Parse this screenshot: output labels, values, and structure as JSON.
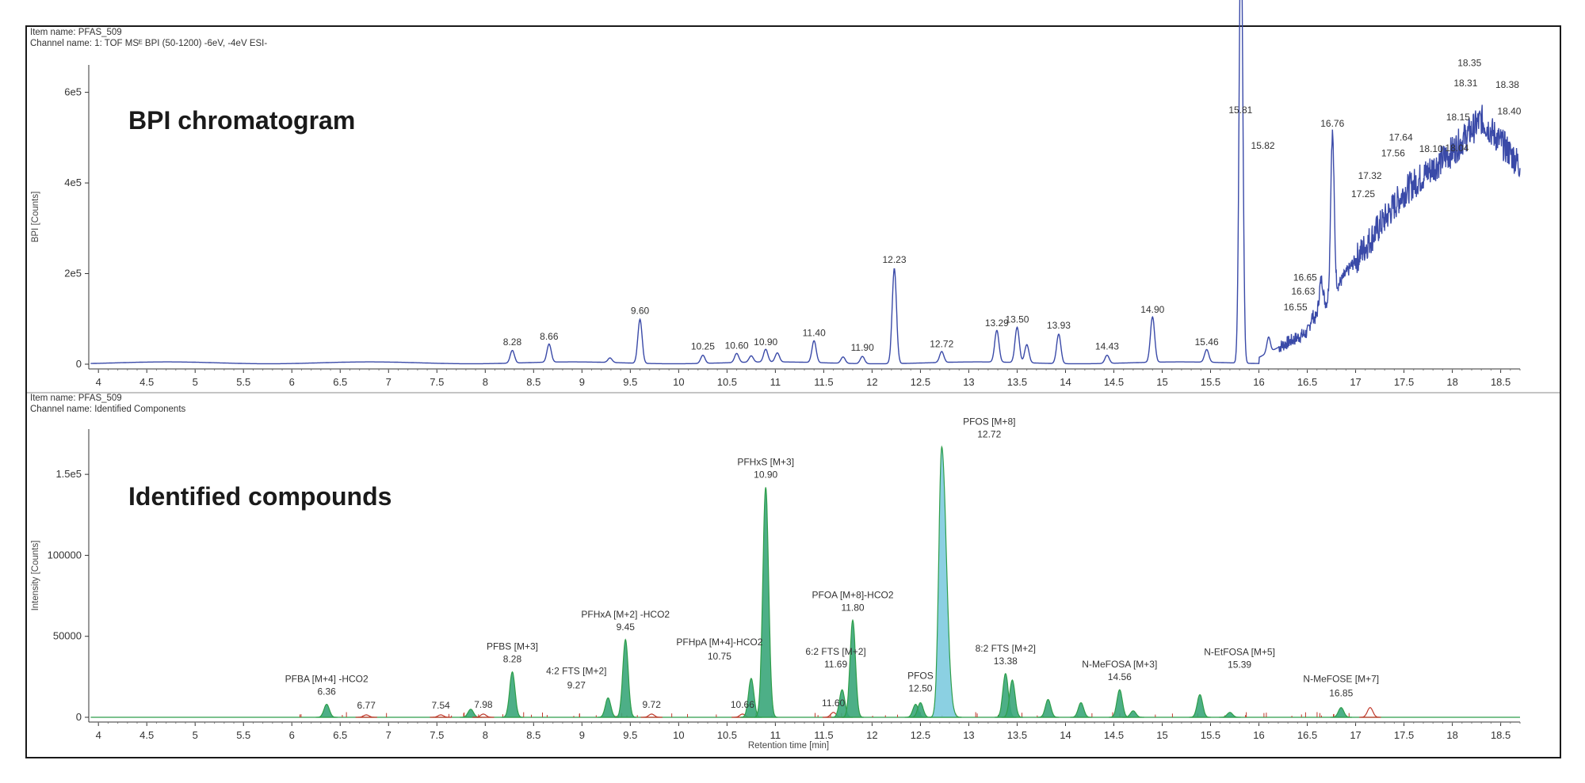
{
  "chart_data": [
    {
      "type": "line",
      "panel_title": "BPI chromatogram",
      "item_name": "Item name: PFAS_509",
      "channel_name": "Channel name: 1: TOF MSᴱ BPI (50-1200) -6eV, -4eV ESI-",
      "ylabel": "BPI [Counts]",
      "xlabel": "",
      "xlim": [
        3.9,
        18.7
      ],
      "ylim": [
        0,
        650000
      ],
      "y_ticks": [
        {
          "v": 0,
          "label": "0"
        },
        {
          "v": 200000,
          "label": "2e5"
        },
        {
          "v": 400000,
          "label": "4e5"
        },
        {
          "v": 600000,
          "label": "6e5"
        }
      ],
      "x_ticks": [
        4,
        4.5,
        5,
        5.5,
        6,
        6.5,
        7,
        7.5,
        8,
        8.5,
        9,
        9.5,
        10,
        10.5,
        11,
        11.5,
        12,
        12.5,
        13,
        13.5,
        14,
        14.5,
        15,
        15.5,
        16,
        16.5,
        17,
        17.5,
        18,
        18.5
      ],
      "x_tick_labels": [
        "4",
        "4.5",
        "5",
        "5.5",
        "6",
        "6.5",
        "7",
        "7.5",
        "8",
        "8.5",
        "9",
        "9.5",
        "10",
        "10.5",
        "11",
        "11.5",
        "12",
        "12.5",
        "13",
        "13.5",
        "14",
        "14.5",
        "15",
        "15.5",
        "16",
        "16.5",
        "17",
        "17.5",
        "18",
        "18.5"
      ],
      "color": "#3a4aa8",
      "peaks": [
        {
          "rt": 8.28,
          "height": 28000,
          "label": "8.28"
        },
        {
          "rt": 8.66,
          "height": 40000,
          "label": "8.66"
        },
        {
          "rt": 9.29,
          "height": 10000,
          "label": ""
        },
        {
          "rt": 9.6,
          "height": 97000,
          "label": "9.60"
        },
        {
          "rt": 10.25,
          "height": 18000,
          "label": "10.25"
        },
        {
          "rt": 10.6,
          "height": 20000,
          "label": "10.60"
        },
        {
          "rt": 10.75,
          "height": 14000,
          "label": ""
        },
        {
          "rt": 10.9,
          "height": 28000,
          "label": "10.90"
        },
        {
          "rt": 11.02,
          "height": 20000,
          "label": ""
        },
        {
          "rt": 11.4,
          "height": 48000,
          "label": "11.40"
        },
        {
          "rt": 11.7,
          "height": 14000,
          "label": ""
        },
        {
          "rt": 11.9,
          "height": 16000,
          "label": "11.90"
        },
        {
          "rt": 12.23,
          "height": 210000,
          "label": "12.23"
        },
        {
          "rt": 12.72,
          "height": 24000,
          "label": "12.72"
        },
        {
          "rt": 13.29,
          "height": 70000,
          "label": "13.29"
        },
        {
          "rt": 13.5,
          "height": 78000,
          "label": "13.50"
        },
        {
          "rt": 13.6,
          "height": 40000,
          "label": ""
        },
        {
          "rt": 13.93,
          "height": 65000,
          "label": "13.93"
        },
        {
          "rt": 14.43,
          "height": 18000,
          "label": "14.43"
        },
        {
          "rt": 14.9,
          "height": 100000,
          "label": "14.90"
        },
        {
          "rt": 15.46,
          "height": 28000,
          "label": "15.46"
        },
        {
          "rt": 15.81,
          "height": 540000,
          "label": "15.81"
        },
        {
          "rt": 15.82,
          "height": 500000,
          "label": "15.82"
        },
        {
          "rt": 16.1,
          "height": 60000,
          "label": ""
        },
        {
          "rt": 16.55,
          "height": 105000,
          "label": "16.55"
        },
        {
          "rt": 16.63,
          "height": 140000,
          "label": "16.63"
        },
        {
          "rt": 16.65,
          "height": 170000,
          "label": "16.65"
        },
        {
          "rt": 16.76,
          "height": 510000,
          "label": "16.76"
        },
        {
          "rt": 17.25,
          "height": 355000,
          "label": "17.25"
        },
        {
          "rt": 17.32,
          "height": 395000,
          "label": "17.32"
        },
        {
          "rt": 17.56,
          "height": 445000,
          "label": "17.56"
        },
        {
          "rt": 17.64,
          "height": 480000,
          "label": "17.64"
        },
        {
          "rt": 18.1,
          "height": 510000,
          "label": "18.10"
        },
        {
          "rt": 18.04,
          "height": 505000,
          "label": "18.04"
        },
        {
          "rt": 18.15,
          "height": 545000,
          "label": "18.15"
        },
        {
          "rt": 18.31,
          "height": 620000,
          "label": "18.31"
        },
        {
          "rt": 18.35,
          "height": 640000,
          "label": "18.35"
        },
        {
          "rt": 18.38,
          "height": 620000,
          "label": "18.38"
        },
        {
          "rt": 18.4,
          "height": 590000,
          "label": "18.40"
        }
      ],
      "baseline_rise": [
        {
          "rt": 16.0,
          "v": 15000
        },
        {
          "rt": 16.5,
          "v": 70000
        },
        {
          "rt": 16.9,
          "v": 200000
        },
        {
          "rt": 17.5,
          "v": 380000
        },
        {
          "rt": 18.0,
          "v": 470000
        },
        {
          "rt": 18.3,
          "v": 540000
        },
        {
          "rt": 18.7,
          "v": 440000
        }
      ]
    },
    {
      "type": "area",
      "panel_title": "Identified compounds",
      "item_name": "Item name: PFAS_509",
      "channel_name": "Channel name: Identified Components",
      "ylabel": "Intensity [Counts]",
      "xlabel": "Retention time [min]",
      "xlim": [
        3.9,
        18.7
      ],
      "ylim": [
        0,
        175000
      ],
      "y_ticks": [
        {
          "v": 0,
          "label": "0"
        },
        {
          "v": 50000,
          "label": "50000"
        },
        {
          "v": 100000,
          "label": "100000"
        },
        {
          "v": 150000,
          "label": "1.5e5"
        }
      ],
      "x_ticks": [
        4,
        4.5,
        5,
        5.5,
        6,
        6.5,
        7,
        7.5,
        8,
        8.5,
        9,
        9.5,
        10,
        10.5,
        11,
        11.5,
        12,
        12.5,
        13,
        13.5,
        14,
        14.5,
        15,
        15.5,
        16,
        16.5,
        17,
        17.5,
        18,
        18.5
      ],
      "x_tick_labels": [
        "4",
        "4.5",
        "5",
        "5.5",
        "6",
        "6.5",
        "7",
        "7.5",
        "8",
        "8.5",
        "9",
        "9.5",
        "10",
        "10.5",
        "11",
        "11.5",
        "12",
        "12.5",
        "13",
        "13.5",
        "14",
        "14.5",
        "15",
        "15.5",
        "16",
        "16.5",
        "17",
        "17.5",
        "18",
        "18.5"
      ],
      "line_color": "#2e9e4a",
      "fill_green": "#3aa67a",
      "fill_blue": "#7ecbdf",
      "minor_color": "#c0392b",
      "peaks": [
        {
          "rt": 6.36,
          "height": 8000,
          "name": "PFBA [M+4] -HCO2",
          "label": "6.36",
          "fill": "green"
        },
        {
          "rt": 6.77,
          "height": 1500,
          "name": "",
          "label": "6.77",
          "fill": "none"
        },
        {
          "rt": 7.54,
          "height": 1500,
          "name": "",
          "label": "7.54",
          "fill": "none"
        },
        {
          "rt": 7.85,
          "height": 5000,
          "name": "",
          "label": "",
          "fill": "green"
        },
        {
          "rt": 7.98,
          "height": 2000,
          "name": "",
          "label": "7.98",
          "fill": "none"
        },
        {
          "rt": 8.28,
          "height": 28000,
          "name": "PFBS [M+3]",
          "label": "8.28",
          "fill": "green"
        },
        {
          "rt": 9.27,
          "height": 12000,
          "name": "4:2 FTS [M+2]",
          "label": "9.27",
          "fill": "green"
        },
        {
          "rt": 9.45,
          "height": 48000,
          "name": "PFHxA [M+2] -HCO2",
          "label": "9.45",
          "fill": "green"
        },
        {
          "rt": 9.72,
          "height": 2000,
          "name": "",
          "label": "9.72",
          "fill": "none"
        },
        {
          "rt": 10.66,
          "height": 2000,
          "name": "",
          "label": "10.66",
          "fill": "none"
        },
        {
          "rt": 10.75,
          "height": 24000,
          "name": "PFHpA [M+4]-HCO2",
          "label": "10.75",
          "fill": "green"
        },
        {
          "rt": 10.9,
          "height": 142000,
          "name": "PFHxS [M+3]",
          "label": "10.90",
          "fill": "green"
        },
        {
          "rt": 11.6,
          "height": 3000,
          "name": "",
          "label": "11.60",
          "fill": "none"
        },
        {
          "rt": 11.69,
          "height": 17000,
          "name": "6:2 FTS [M+2]",
          "label": "11.69",
          "fill": "green"
        },
        {
          "rt": 11.8,
          "height": 60000,
          "name": "PFOA [M+8]-HCO2",
          "label": "11.80",
          "fill": "green"
        },
        {
          "rt": 12.45,
          "height": 8000,
          "name": "",
          "label": "",
          "fill": "green"
        },
        {
          "rt": 12.5,
          "height": 9000,
          "name": "PFOS",
          "label": "12.50",
          "fill": "green"
        },
        {
          "rt": 12.72,
          "height": 167000,
          "name": "PFOS [M+8]",
          "label": "12.72",
          "fill": "blue"
        },
        {
          "rt": 13.38,
          "height": 27000,
          "name": "8:2 FTS [M+2]",
          "label": "13.38",
          "fill": "green"
        },
        {
          "rt": 13.45,
          "height": 23000,
          "name": "",
          "label": "",
          "fill": "green"
        },
        {
          "rt": 13.82,
          "height": 11000,
          "name": "",
          "label": "",
          "fill": "green"
        },
        {
          "rt": 14.16,
          "height": 9000,
          "name": "",
          "label": "",
          "fill": "green"
        },
        {
          "rt": 14.56,
          "height": 17000,
          "name": "N-MeFOSA [M+3]",
          "label": "14.56",
          "fill": "green"
        },
        {
          "rt": 14.7,
          "height": 4000,
          "name": "",
          "label": "",
          "fill": "green"
        },
        {
          "rt": 15.39,
          "height": 14000,
          "name": "N-EtFOSA [M+5]",
          "label": "15.39",
          "fill": "green"
        },
        {
          "rt": 15.7,
          "height": 3000,
          "name": "",
          "label": "",
          "fill": "green"
        },
        {
          "rt": 16.85,
          "height": 6000,
          "name": "N-MeFOSE [M+7]",
          "label": "16.85",
          "fill": "green"
        },
        {
          "rt": 17.15,
          "height": 6000,
          "name": "",
          "label": "",
          "fill": "none"
        }
      ]
    }
  ]
}
